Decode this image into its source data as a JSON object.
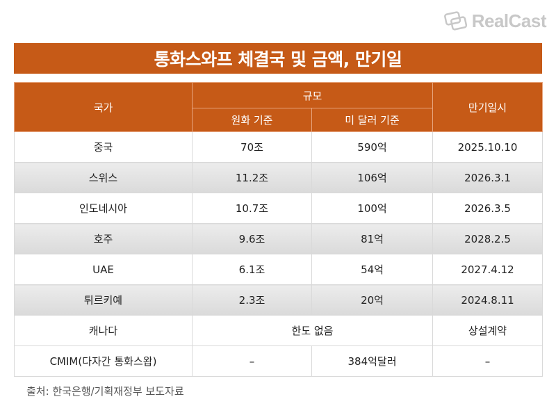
{
  "logo": {
    "text": "RealCast",
    "icon": "chat-bubbles-icon"
  },
  "title": "통화스와프 체결국 및 금액, 만기일",
  "table": {
    "header": {
      "country": "국가",
      "scale": "규모",
      "krw": "원화 기준",
      "usd": "미 달러 기준",
      "maturity": "만기일시"
    },
    "rows": [
      {
        "country": "중국",
        "krw": "70조",
        "usd": "590억",
        "maturity": "2025.10.10"
      },
      {
        "country": "스위스",
        "krw": "11.2조",
        "usd": "106억",
        "maturity": "2026.3.1"
      },
      {
        "country": "인도네시아",
        "krw": "10.7조",
        "usd": "100억",
        "maturity": "2026.3.5"
      },
      {
        "country": "호주",
        "krw": "9.6조",
        "usd": "81억",
        "maturity": "2028.2.5"
      },
      {
        "country": "UAE",
        "krw": "6.1조",
        "usd": "54억",
        "maturity": "2027.4.12"
      },
      {
        "country": "튀르키예",
        "krw": "2.3조",
        "usd": "20억",
        "maturity": "2024.8.11"
      }
    ],
    "canada": {
      "country": "캐나다",
      "scale": "한도 없음",
      "maturity": "상설계약"
    },
    "cmim": {
      "country": "CMIM(다자간 통화스왑)",
      "krw": "–",
      "usd": "384억달러",
      "maturity": "–"
    }
  },
  "source": "출처: 한국은행/기획재정부 보도자료",
  "colors": {
    "accent": "#c65a17",
    "logo": "#c8c8c8"
  }
}
